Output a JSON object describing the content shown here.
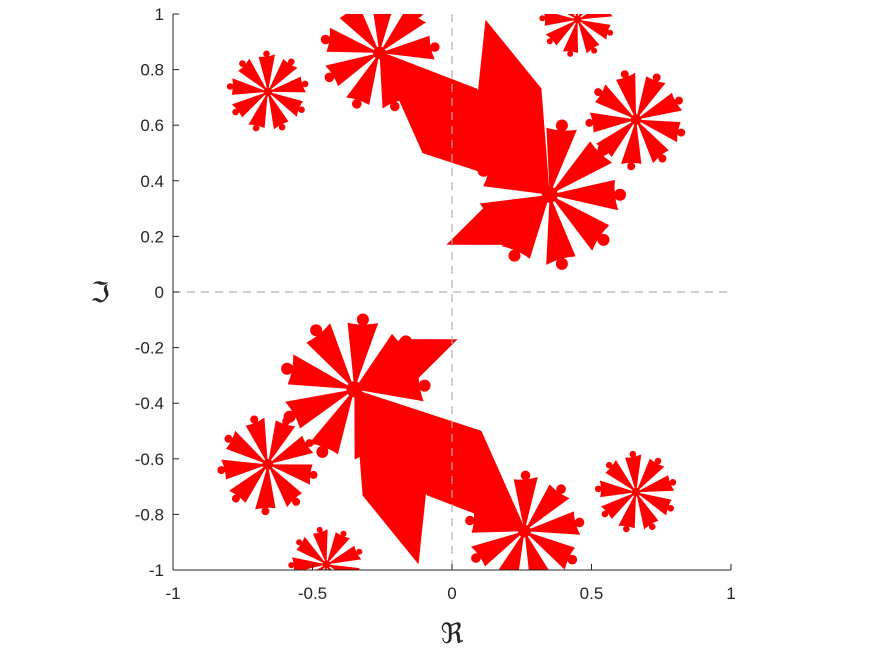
{
  "chart_data": {
    "type": "heatmap",
    "title": "",
    "xlabel": "ℜ",
    "ylabel": "ℑ",
    "xlim": [
      -1,
      1
    ],
    "ylim": [
      -1,
      1
    ],
    "xticks": [
      -1,
      -0.5,
      0,
      0.5,
      1
    ],
    "yticks": [
      -1,
      -0.8,
      -0.6,
      -0.4,
      -0.2,
      0,
      0.2,
      0.4,
      0.6,
      0.8,
      1
    ],
    "xtick_labels": [
      "-1",
      "-0.5",
      "0",
      "0.5",
      "1"
    ],
    "ytick_labels": [
      "-1",
      "-0.8",
      "-0.6",
      "-0.4",
      "-0.2",
      "0",
      "0.2",
      "0.4",
      "0.6",
      "0.8",
      "1"
    ],
    "reference_lines": [
      {
        "orientation": "horizontal",
        "value": 0,
        "style": "dashed"
      },
      {
        "orientation": "vertical",
        "value": 0,
        "style": "dashed"
      }
    ],
    "fill_color": "#ff0000",
    "background_color": "#ffffff",
    "axis_color": "#262626",
    "reference_line_color": "#b0b0b0",
    "grid": false,
    "legend": "none",
    "series": [
      {
        "region_type": "filled Julia-set-like fractal",
        "rays_per_spiral": 9,
        "spiral_centers": [
          {
            "x": 0.35,
            "y": 0.35
          },
          {
            "x": -0.35,
            "y": -0.35
          },
          {
            "x": -0.26,
            "y": 0.86
          },
          {
            "x": 0.26,
            "y": -0.86
          },
          {
            "x": -0.66,
            "y": 0.72
          },
          {
            "x": 0.66,
            "y": -0.72
          },
          {
            "x": 0.45,
            "y": 0.98
          },
          {
            "x": -0.45,
            "y": -0.98
          },
          {
            "x": 0.66,
            "y": 0.62
          },
          {
            "x": -0.66,
            "y": -0.62
          }
        ],
        "wedges": [
          {
            "center": [
              0.35,
              0.35
            ],
            "to": [
              -0.27,
              0.87
            ]
          },
          {
            "center": [
              0.35,
              0.35
            ],
            "to": [
              -0.02,
              0.17
            ]
          },
          {
            "center": [
              -0.35,
              -0.35
            ],
            "to": [
              0.27,
              -0.87
            ]
          },
          {
            "center": [
              -0.35,
              -0.35
            ],
            "to": [
              0.02,
              -0.17
            ]
          },
          {
            "center": [
              0.35,
              0.35
            ],
            "to": [
              0.12,
              0.98
            ]
          },
          {
            "center": [
              -0.35,
              -0.35
            ],
            "to": [
              -0.12,
              -0.98
            ]
          }
        ]
      }
    ]
  }
}
